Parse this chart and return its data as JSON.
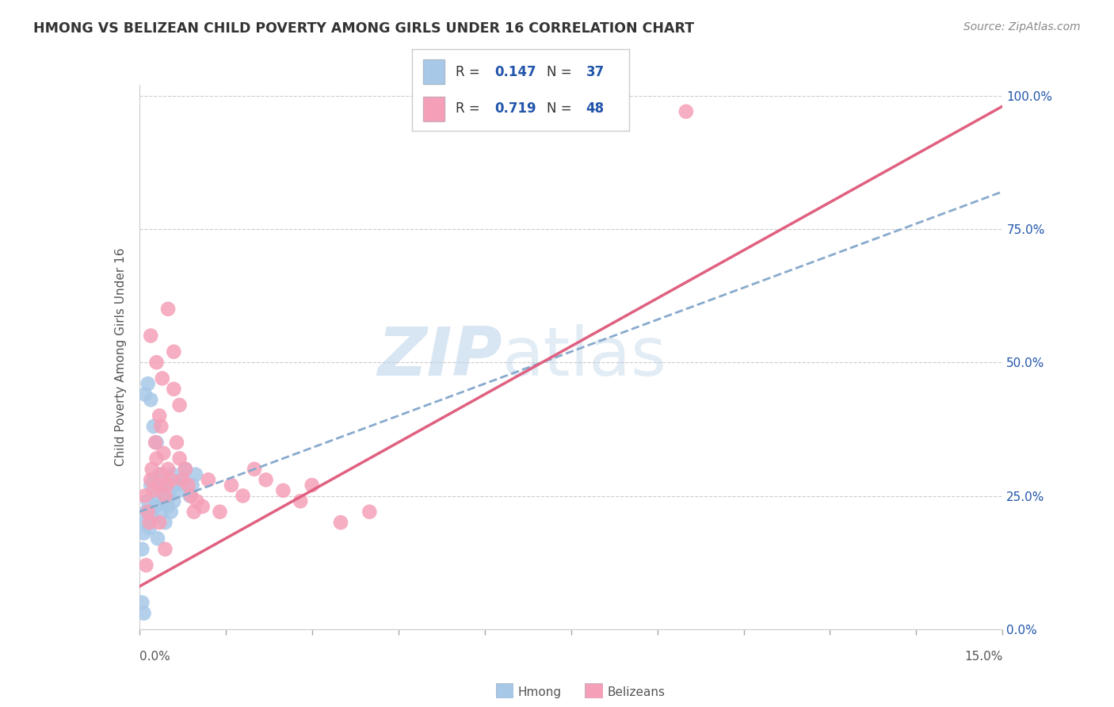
{
  "title": "HMONG VS BELIZEAN CHILD POVERTY AMONG GIRLS UNDER 16 CORRELATION CHART",
  "source": "Source: ZipAtlas.com",
  "ylabel": "Child Poverty Among Girls Under 16",
  "xmin": 0.0,
  "xmax": 15.0,
  "ymin": 0.0,
  "ymax": 100.0,
  "yticks": [
    0.0,
    25.0,
    50.0,
    75.0,
    100.0
  ],
  "ytick_labels": [
    "0.0%",
    "25.0%",
    "50.0%",
    "75.0%",
    "100.0%"
  ],
  "hmong_R": 0.147,
  "hmong_N": 37,
  "belizean_R": 0.719,
  "belizean_N": 48,
  "hmong_color": "#a8c8e8",
  "belizean_color": "#f5a0b8",
  "hmong_line_color": "#88aacc",
  "belizean_line_color": "#e06080",
  "legend_text_color": "#2255aa",
  "legend_label_color": "#333333",
  "watermark": "ZIPatlas",
  "watermark_color": "#c8d8f0",
  "grid_color": "#cccccc",
  "title_color": "#333333",
  "source_color": "#888888",
  "ylabel_color": "#555555",
  "hmong_line_intercept": 22.0,
  "hmong_line_slope": 4.0,
  "belizean_line_intercept": 8.0,
  "belizean_line_slope": 6.0,
  "hmong_x": [
    0.05,
    0.08,
    0.1,
    0.12,
    0.15,
    0.18,
    0.2,
    0.22,
    0.25,
    0.28,
    0.3,
    0.32,
    0.35,
    0.38,
    0.4,
    0.42,
    0.45,
    0.48,
    0.5,
    0.52,
    0.55,
    0.58,
    0.6,
    0.65,
    0.7,
    0.75,
    0.8,
    0.88,
    0.92,
    0.98,
    0.1,
    0.15,
    0.2,
    0.25,
    0.3,
    0.05,
    0.08
  ],
  "hmong_y": [
    15.0,
    18.0,
    20.0,
    22.0,
    24.0,
    19.0,
    27.0,
    21.0,
    28.0,
    23.0,
    25.0,
    17.0,
    29.0,
    22.0,
    26.0,
    24.0,
    20.0,
    27.0,
    23.0,
    25.0,
    22.0,
    29.0,
    24.0,
    27.0,
    26.0,
    28.0,
    30.0,
    25.0,
    27.0,
    29.0,
    44.0,
    46.0,
    43.0,
    38.0,
    35.0,
    5.0,
    3.0
  ],
  "belizean_x": [
    0.1,
    0.15,
    0.18,
    0.2,
    0.22,
    0.25,
    0.28,
    0.3,
    0.32,
    0.35,
    0.38,
    0.4,
    0.42,
    0.45,
    0.48,
    0.5,
    0.55,
    0.6,
    0.65,
    0.7,
    0.75,
    0.8,
    0.85,
    0.9,
    0.95,
    1.0,
    1.1,
    1.2,
    1.4,
    1.6,
    1.8,
    2.0,
    2.2,
    2.5,
    2.8,
    3.0,
    3.5,
    4.0,
    0.2,
    0.3,
    0.4,
    0.5,
    0.6,
    0.7,
    0.35,
    0.45,
    9.5,
    0.12
  ],
  "belizean_y": [
    25.0,
    22.0,
    20.0,
    28.0,
    30.0,
    26.0,
    35.0,
    32.0,
    27.0,
    40.0,
    38.0,
    29.0,
    33.0,
    25.0,
    27.0,
    30.0,
    28.0,
    45.0,
    35.0,
    32.0,
    28.0,
    30.0,
    27.0,
    25.0,
    22.0,
    24.0,
    23.0,
    28.0,
    22.0,
    27.0,
    25.0,
    30.0,
    28.0,
    26.0,
    24.0,
    27.0,
    20.0,
    22.0,
    55.0,
    50.0,
    47.0,
    60.0,
    52.0,
    42.0,
    20.0,
    15.0,
    97.0,
    12.0
  ]
}
